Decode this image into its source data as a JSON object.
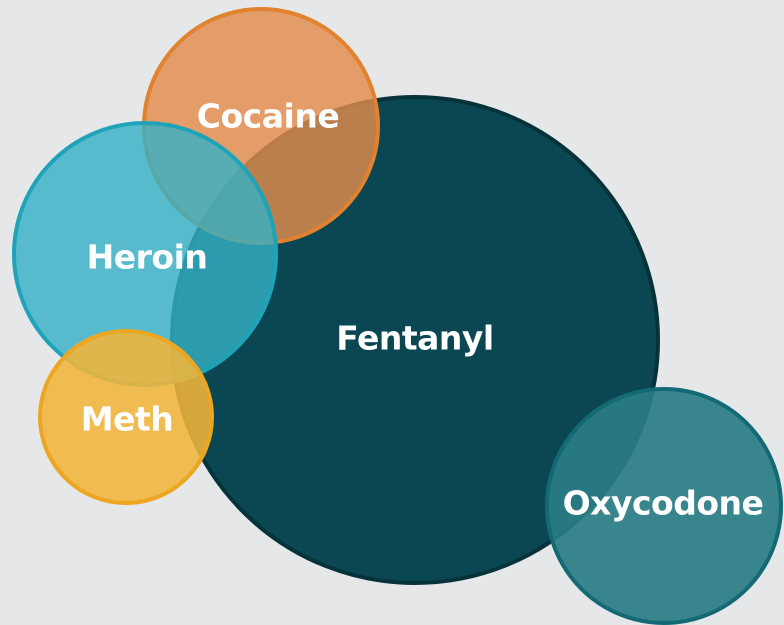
{
  "nodes": [
    {
      "label": "Fentanyl"
    },
    {
      "label": "Cocaine"
    },
    {
      "label": "Heroin"
    },
    {
      "label": "Meth"
    },
    {
      "label": "Oxycodone"
    }
  ]
}
